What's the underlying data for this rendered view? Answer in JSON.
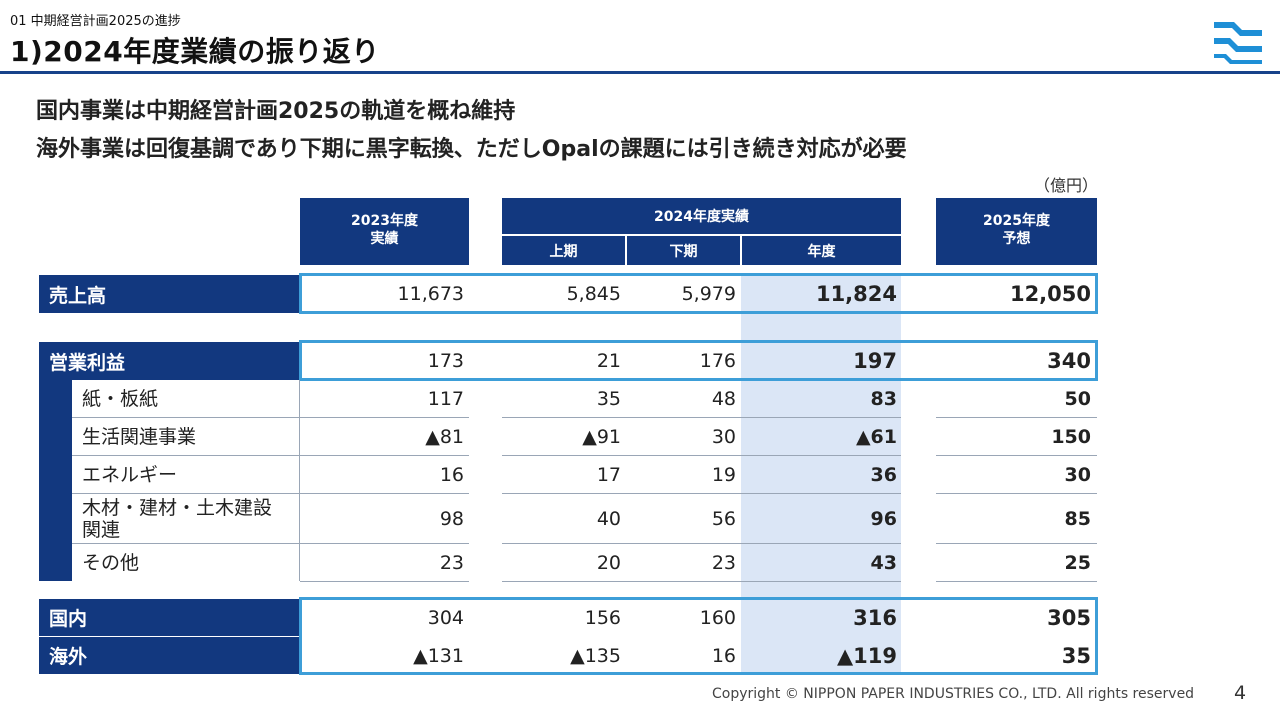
{
  "header": {
    "section": "01  中期経営計画2025の進捗",
    "title": "1)2024年度業績の振り返り",
    "logo": "nippon-paper-logo"
  },
  "headlines": [
    "国内事業は中期経営計画2025の軌道を概ね維持",
    "海外事業は回復基調であり下期に黒字転換、ただしOpalの課題には引き続き対応が必要"
  ],
  "unit": "（億円）",
  "columns": {
    "fy2023": [
      "2023年度",
      "実績"
    ],
    "fy2024": "2024年度実績",
    "h1": "上期",
    "h2": "下期",
    "fy": "年度",
    "fy2025": [
      "2025年度",
      "予想"
    ]
  },
  "rows": [
    {
      "label": "売上高",
      "fy2023": "11,673",
      "h1": "5,845",
      "h2": "5,979",
      "fy": "11,824",
      "fy2025": "12,050"
    },
    {
      "label": "営業利益",
      "fy2023": "173",
      "h1": "21",
      "h2": "176",
      "fy": "197",
      "fy2025": "340"
    },
    {
      "label": "紙・板紙",
      "fy2023": "117",
      "h1": "35",
      "h2": "48",
      "fy": "83",
      "fy2025": "50"
    },
    {
      "label": "生活関連事業",
      "fy2023": "▲81",
      "h1": "▲91",
      "h2": "30",
      "fy": "▲61",
      "fy2025": "150"
    },
    {
      "label": "エネルギー",
      "fy2023": "16",
      "h1": "17",
      "h2": "19",
      "fy": "36",
      "fy2025": "30"
    },
    {
      "label": "木材・建材・土木建設関連",
      "fy2023": "98",
      "h1": "40",
      "h2": "56",
      "fy": "96",
      "fy2025": "85"
    },
    {
      "label": "その他",
      "fy2023": "23",
      "h1": "20",
      "h2": "23",
      "fy": "43",
      "fy2025": "25"
    },
    {
      "label": "国内",
      "fy2023": "304",
      "h1": "156",
      "h2": "160",
      "fy": "316",
      "fy2025": "305"
    },
    {
      "label": "海外",
      "fy2023": "▲131",
      "h1": "▲135",
      "h2": "16",
      "fy": "▲119",
      "fy2025": "35"
    }
  ],
  "footer": {
    "copyright": "Copyright © NIPPON PAPER INDUSTRIES CO., LTD. All rights reserved",
    "page": "4"
  },
  "colors": {
    "navy": "#12387f",
    "frame": "#3d9ed8",
    "highlight": "#dbe6f6"
  }
}
